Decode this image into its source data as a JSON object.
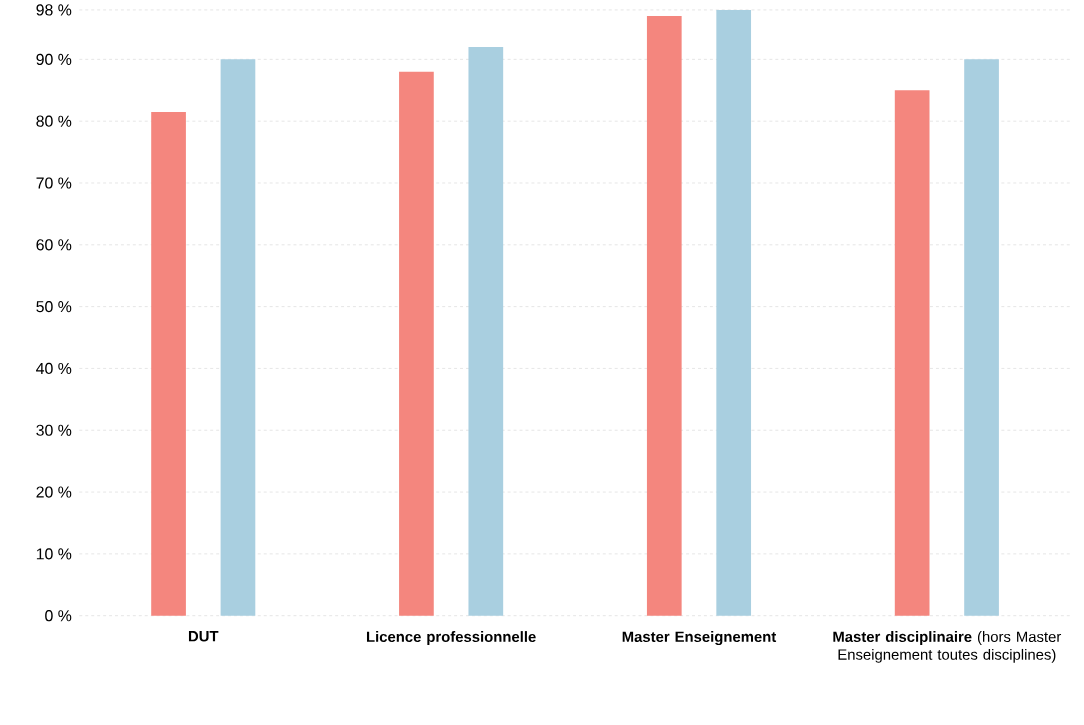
{
  "chart_data": {
    "type": "bar",
    "categories": [
      "DUT",
      "Licence professionnelle",
      "Master Enseignement",
      "**Master disciplinaire** (hors Master Enseignement toutes disciplines)"
    ],
    "series": [
      {
        "color": "#f4867e",
        "values": [
          81.5,
          88,
          97,
          85
        ]
      },
      {
        "color": "#a9cfe0",
        "values": [
          90,
          92,
          98,
          90
        ]
      }
    ],
    "ylim": [
      0,
      98
    ],
    "yticks": [
      {
        "value": 0,
        "label": "0 %"
      },
      {
        "value": 10,
        "label": "10 %"
      },
      {
        "value": 20,
        "label": "20 %"
      },
      {
        "value": 30,
        "label": "30 %"
      },
      {
        "value": 40,
        "label": "40 %"
      },
      {
        "value": 50,
        "label": "50 %"
      },
      {
        "value": 60,
        "label": "60 %"
      },
      {
        "value": 70,
        "label": "70 %"
      },
      {
        "value": 80,
        "label": "80 %"
      },
      {
        "value": 90,
        "label": "90 %"
      },
      {
        "value": 98,
        "label": "98 %"
      }
    ],
    "grid": "y"
  }
}
